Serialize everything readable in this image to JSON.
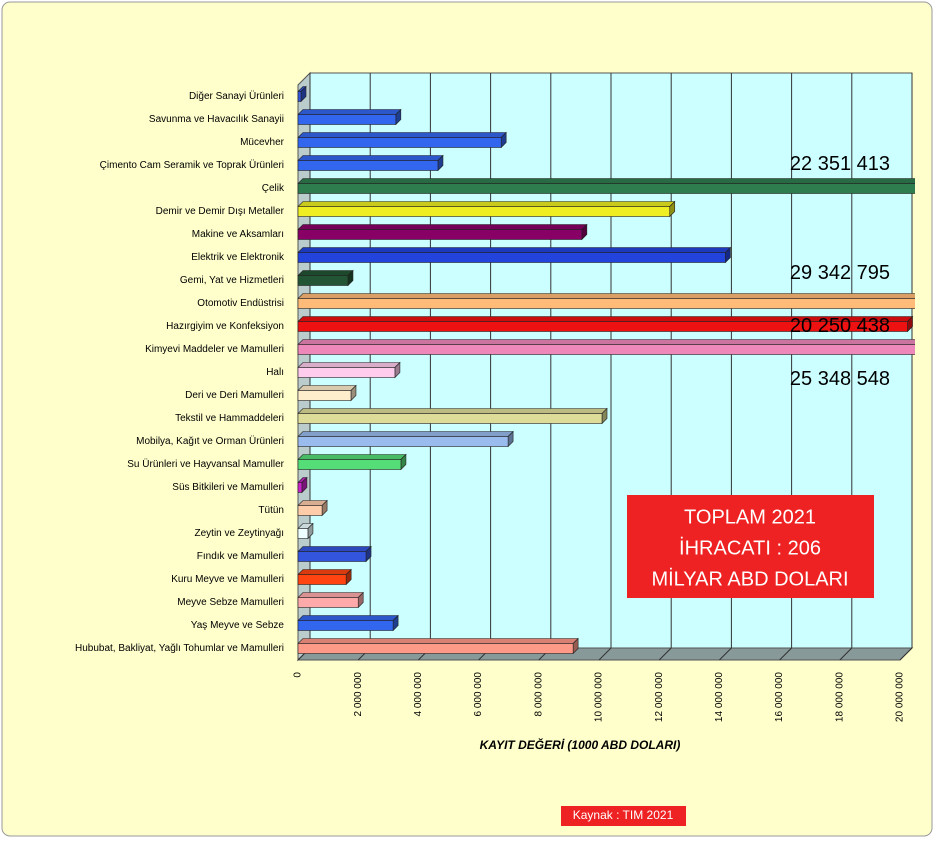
{
  "chart_data": {
    "type": "hbar",
    "categories": [
      "Diğer Sanayi Ürünleri",
      "Savunma ve Havacılık Sanayii",
      "Mücevher",
      "Çimento Cam Seramik ve Toprak Ürünleri",
      "Çelik",
      "Demir ve Demir Dışı Metaller",
      "Makine ve Aksamları",
      "Elektrik ve Elektronik",
      "Gemi, Yat ve Hizmetleri",
      "Otomotiv Endüstrisi",
      "Hazırgiyim ve Konfeksiyon",
      "Kimyevi Maddeler ve Mamulleri",
      "Halı",
      "Deri ve Deri Mamulleri",
      "Tekstil ve Hammaddeleri",
      "Mobilya, Kağıt ve Orman Ürünleri",
      "Su Ürünleri ve Hayvansal Mamuller",
      "Süs Bitkileri ve Mamulleri",
      "Tütün",
      "Zeytin ve Zeytinyağı",
      "Fındık ve Mamulleri",
      "Kuru Meyve ve Mamulleri",
      "Meyve Sebze Mamulleri",
      "Yaş Meyve ve Sebze",
      "Hububat, Bakliyat, Yağlı Tohumlar ve Mamulleri"
    ],
    "values": [
      100000,
      3250000,
      6750000,
      4650000,
      22351413,
      12350000,
      9430000,
      14200000,
      1660000,
      29342795,
      20250438,
      25348548,
      3220000,
      1760000,
      10100000,
      6980000,
      3420000,
      130000,
      800000,
      330000,
      2260000,
      1600000,
      2000000,
      3160000,
      9140000
    ],
    "value_labels": [
      null,
      null,
      null,
      null,
      "22 351 413",
      null,
      null,
      null,
      null,
      "29 342 795",
      "20 250 438",
      "25 348 548",
      null,
      null,
      null,
      null,
      null,
      null,
      null,
      null,
      null,
      null,
      null,
      null,
      null
    ],
    "colors": [
      "#3355dd",
      "#3366ee",
      "#3366ee",
      "#3366ee",
      "#2e7d4f",
      "#eeee22",
      "#880066",
      "#2244dd",
      "#225533",
      "#ffbb77",
      "#ee1111",
      "#ee88bb",
      "#ffccee",
      "#ffeecc",
      "#dddd99",
      "#99bbee",
      "#55dd77",
      "#cc22cc",
      "#ffccaa",
      "#eeffff",
      "#3355dd",
      "#ff4411",
      "#ffaaaa",
      "#3366ee",
      "#ff9988"
    ],
    "xlabel": "KAYIT DEĞERİ  (1000 ABD DOLARI)",
    "xlim": [
      0,
      20000000
    ],
    "xticks": [
      0,
      {
        "value": 2000000,
        "label": "2 000 000"
      },
      {
        "value": 4000000,
        "label": "4 000 000"
      },
      {
        "value": 6000000,
        "label": "6 000 000"
      },
      {
        "value": 8000000,
        "label": "8 000 000"
      },
      {
        "value": 10000000,
        "label": "10 000 000"
      },
      {
        "value": 12000000,
        "label": "12 000 000"
      },
      {
        "value": 14000000,
        "label": "14 000 000"
      },
      {
        "value": 16000000,
        "label": "16 000 000"
      },
      {
        "value": 18000000,
        "label": "18 000 000"
      },
      {
        "value": 20000000,
        "label": "20 000 000"
      }
    ],
    "grid": true,
    "annotation": [
      "TOPLAM 2021",
      "İHRACATI : 206",
      "MİLYAR ABD DOLARI"
    ],
    "source": "Kaynak : TIM 2021"
  }
}
